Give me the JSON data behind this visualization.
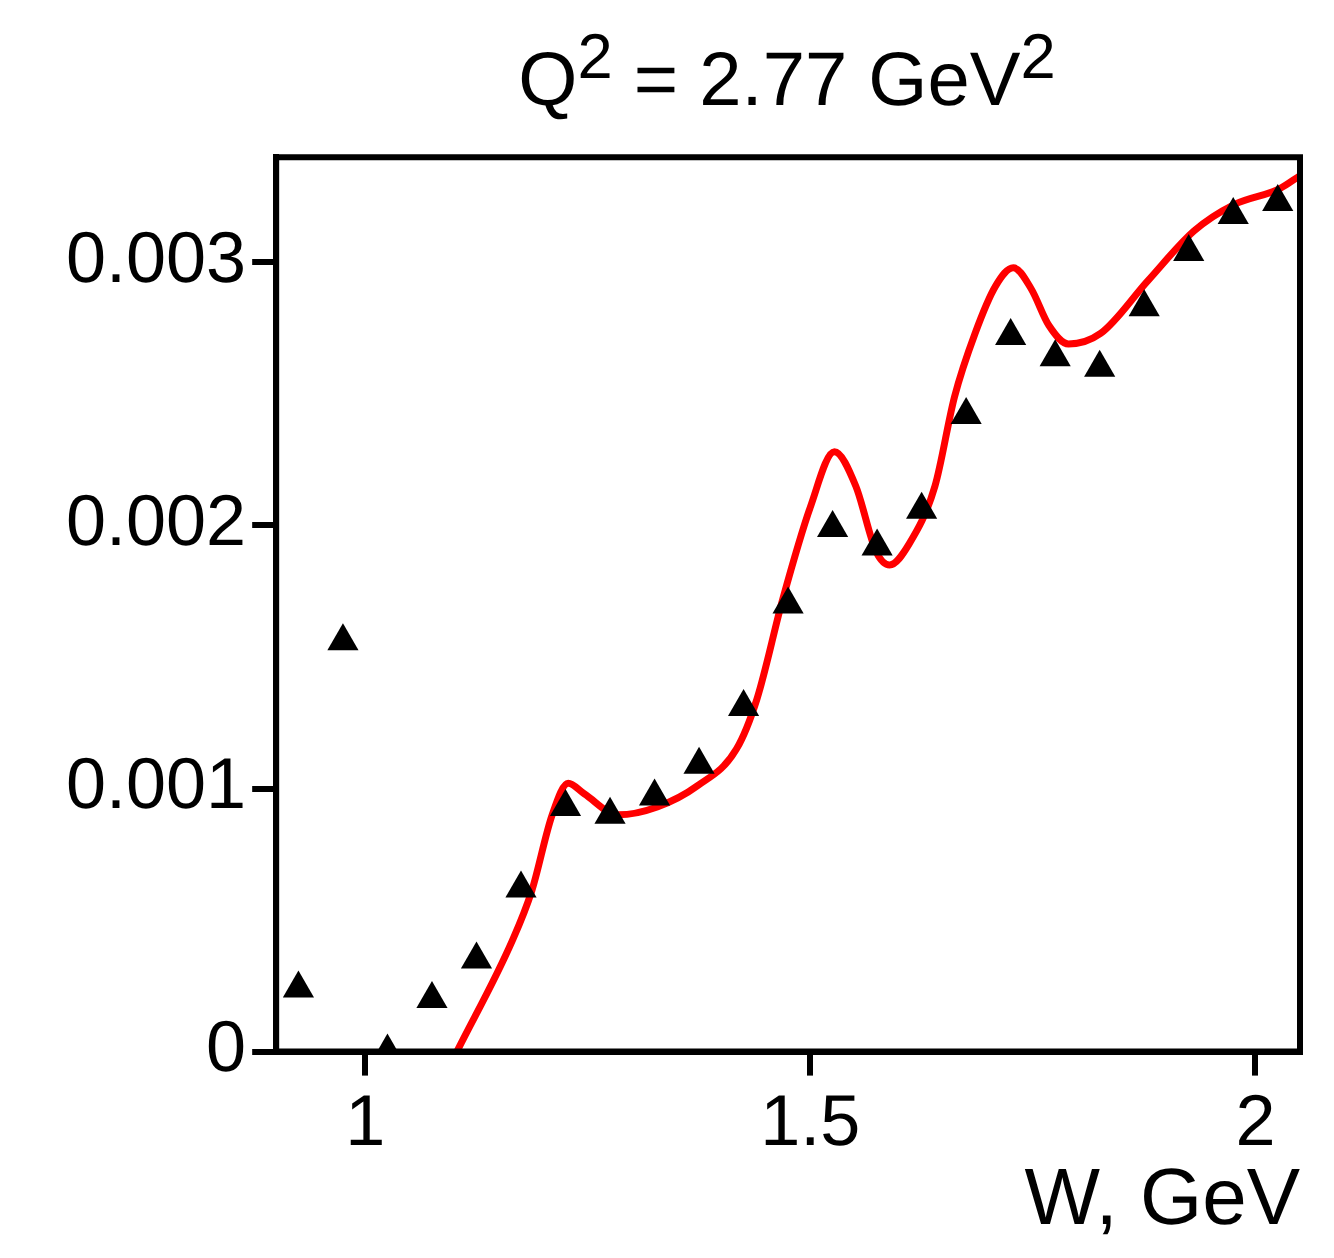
{
  "chart_data": {
    "type": "scatter",
    "title": "Q$^{2}$ = 2.77 GeV$^{2}$",
    "xlabel": "W, GeV",
    "xlim": [
      0.9,
      2.05
    ],
    "xticks": [
      1,
      1.5,
      2
    ],
    "ylim": [
      0,
      0.0034
    ],
    "yticks": [
      0,
      0.001,
      0.002,
      0.003
    ],
    "grid": false,
    "legend": false,
    "series": [
      {
        "type": "scatter",
        "color": "#000000",
        "marker": "triangle",
        "x": [
          0.925,
          0.975,
          1.025,
          1.075,
          1.125,
          1.175,
          1.225,
          1.275,
          1.325,
          1.375,
          1.425,
          1.475,
          1.525,
          1.575,
          1.625,
          1.675,
          1.725,
          1.775,
          1.825,
          1.875,
          1.925,
          1.975,
          2.025
        ],
        "values": [
          0.00024,
          0.00156,
          0.0,
          0.0002,
          0.00035,
          0.00062,
          0.00093,
          0.0009,
          0.00097,
          0.00109,
          0.00131,
          0.0017,
          0.00199,
          0.00192,
          0.00206,
          0.00242,
          0.00272,
          0.00264,
          0.0026,
          0.00283,
          0.00304,
          0.00318,
          0.00323
        ]
      },
      {
        "type": "line",
        "color": "#ff0000",
        "marker": "none",
        "line_style": "solid",
        "x": [
          1.103,
          1.165,
          1.187,
          1.21,
          1.228,
          1.246,
          1.284,
          1.328,
          1.373,
          1.417,
          1.44,
          1.469,
          1.5,
          1.527,
          1.551,
          1.574,
          1.589,
          1.611,
          1.64,
          1.662,
          1.685,
          1.708,
          1.728,
          1.748,
          1.768,
          1.79,
          1.826,
          1.879,
          1.931,
          1.976,
          2.027,
          2.05
        ],
        "values": [
          0.0,
          0.00042,
          0.00061,
          0.0009,
          0.00102,
          0.00098,
          0.0009,
          0.00093,
          0.00101,
          0.00115,
          0.00134,
          0.00172,
          0.00207,
          0.00228,
          0.00215,
          0.0019,
          0.00185,
          0.00193,
          0.00215,
          0.00249,
          0.00273,
          0.00291,
          0.00298,
          0.0029,
          0.00276,
          0.00269,
          0.00273,
          0.00293,
          0.00312,
          0.00322,
          0.00328,
          0.00333
        ]
      }
    ]
  }
}
